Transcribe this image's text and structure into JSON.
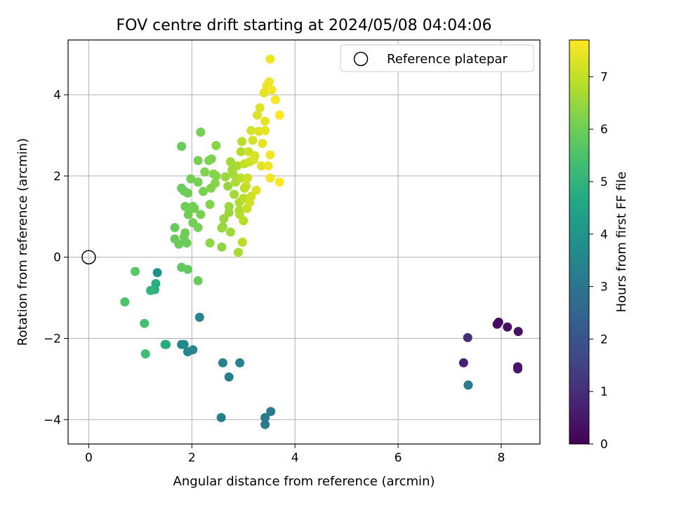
{
  "chart_data": {
    "type": "scatter",
    "title": "FOV centre drift starting at 2024/05/08 04:04:06",
    "xlabel": "Angular distance from reference (arcmin)",
    "ylabel": "Rotation from reference (arcmin)",
    "xlim": [
      -0.4,
      8.75
    ],
    "ylim": [
      -4.6,
      5.35
    ],
    "xticks": [
      0,
      2,
      4,
      6,
      8
    ],
    "xtick_labels": [
      "0",
      "2",
      "4",
      "6",
      "8"
    ],
    "yticks": [
      -4,
      -2,
      0,
      2,
      4
    ],
    "ytick_labels": [
      "−4",
      "−2",
      "0",
      "2",
      "4"
    ],
    "grid": true,
    "legend": {
      "placement": "top-right",
      "entries": [
        "Reference platepar"
      ]
    },
    "reference_point": {
      "x": 0,
      "y": 0
    },
    "colorbar": {
      "label": "Hours from first FF file",
      "cmap": "viridis",
      "range": [
        0,
        7.7
      ],
      "ticks": [
        0,
        1,
        2,
        3,
        4,
        5,
        6,
        7
      ],
      "tick_labels": [
        "0",
        "1",
        "2",
        "3",
        "4",
        "5",
        "6",
        "7"
      ]
    },
    "series": [
      {
        "points": [
          {
            "x": 7.95,
            "y": -1.6,
            "c": 0.2
          },
          {
            "x": 7.92,
            "y": -1.65,
            "c": 0.25
          },
          {
            "x": 8.12,
            "y": -1.72,
            "c": 0.3
          },
          {
            "x": 8.33,
            "y": -1.83,
            "c": 0.35
          },
          {
            "x": 8.32,
            "y": -2.7,
            "c": 0.4
          },
          {
            "x": 8.32,
            "y": -2.75,
            "c": 0.45
          },
          {
            "x": 7.27,
            "y": -2.6,
            "c": 0.7
          },
          {
            "x": 7.35,
            "y": -1.98,
            "c": 1.0
          },
          {
            "x": 7.36,
            "y": -3.15,
            "c": 3.0
          },
          {
            "x": 7.36,
            "y": -3.15,
            "c": 3.1
          },
          {
            "x": 3.53,
            "y": -3.8,
            "c": 3.2
          },
          {
            "x": 3.42,
            "y": -3.95,
            "c": 3.2
          },
          {
            "x": 3.42,
            "y": -4.12,
            "c": 3.1
          },
          {
            "x": 2.57,
            "y": -3.95,
            "c": 3.3
          },
          {
            "x": 2.72,
            "y": -2.95,
            "c": 3.3
          },
          {
            "x": 2.6,
            "y": -2.6,
            "c": 3.4
          },
          {
            "x": 2.93,
            "y": -2.6,
            "c": 3.4
          },
          {
            "x": 2.15,
            "y": -1.48,
            "c": 3.5
          },
          {
            "x": 2.02,
            "y": -2.28,
            "c": 3.5
          },
          {
            "x": 1.92,
            "y": -2.33,
            "c": 3.5
          },
          {
            "x": 1.85,
            "y": -2.15,
            "c": 3.6
          },
          {
            "x": 1.8,
            "y": -2.15,
            "c": 3.6
          },
          {
            "x": 1.33,
            "y": -0.38,
            "c": 3.9
          },
          {
            "x": 1.5,
            "y": -2.15,
            "c": 4.6
          },
          {
            "x": 1.48,
            "y": -2.15,
            "c": 4.7
          },
          {
            "x": 1.3,
            "y": -0.65,
            "c": 4.8
          },
          {
            "x": 1.28,
            "y": -0.8,
            "c": 4.9
          },
          {
            "x": 1.2,
            "y": -0.82,
            "c": 5.0
          },
          {
            "x": 1.1,
            "y": -2.38,
            "c": 5.3
          },
          {
            "x": 1.08,
            "y": -1.63,
            "c": 5.4
          },
          {
            "x": 0.7,
            "y": -1.1,
            "c": 5.5
          },
          {
            "x": 0.9,
            "y": -0.35,
            "c": 5.7
          },
          {
            "x": 1.8,
            "y": -0.25,
            "c": 5.8
          },
          {
            "x": 1.92,
            "y": -0.3,
            "c": 5.8
          },
          {
            "x": 2.12,
            "y": -0.58,
            "c": 5.9
          },
          {
            "x": 1.75,
            "y": 0.32,
            "c": 5.9
          },
          {
            "x": 1.67,
            "y": 0.45,
            "c": 5.9
          },
          {
            "x": 1.67,
            "y": 0.73,
            "c": 5.9
          },
          {
            "x": 1.9,
            "y": 0.35,
            "c": 5.95
          },
          {
            "x": 1.87,
            "y": 0.6,
            "c": 6.0
          },
          {
            "x": 1.85,
            "y": 0.5,
            "c": 6.0
          },
          {
            "x": 1.8,
            "y": 2.73,
            "c": 5.9
          },
          {
            "x": 1.8,
            "y": 1.7,
            "c": 5.9
          },
          {
            "x": 1.85,
            "y": 1.63,
            "c": 5.95
          },
          {
            "x": 1.92,
            "y": 1.58,
            "c": 6.0
          },
          {
            "x": 1.87,
            "y": 1.25,
            "c": 6.0
          },
          {
            "x": 1.95,
            "y": 1.22,
            "c": 6.0
          },
          {
            "x": 1.93,
            "y": 1.05,
            "c": 6.0
          },
          {
            "x": 2.02,
            "y": 1.25,
            "c": 6.05
          },
          {
            "x": 2.05,
            "y": 1.2,
            "c": 6.05
          },
          {
            "x": 1.98,
            "y": 1.93,
            "c": 6.05
          },
          {
            "x": 2.02,
            "y": 0.85,
            "c": 6.05
          },
          {
            "x": 2.12,
            "y": 0.73,
            "c": 6.1
          },
          {
            "x": 2.12,
            "y": 1.85,
            "c": 6.1
          },
          {
            "x": 2.12,
            "y": 2.38,
            "c": 6.1
          },
          {
            "x": 2.17,
            "y": 3.08,
            "c": 6.1
          },
          {
            "x": 2.17,
            "y": 1.05,
            "c": 6.15
          },
          {
            "x": 2.22,
            "y": 1.62,
            "c": 6.15
          },
          {
            "x": 2.25,
            "y": 2.1,
            "c": 6.2
          },
          {
            "x": 2.33,
            "y": 2.38,
            "c": 6.2
          },
          {
            "x": 2.38,
            "y": 2.42,
            "c": 6.2
          },
          {
            "x": 2.35,
            "y": 1.3,
            "c": 6.25
          },
          {
            "x": 2.37,
            "y": 1.7,
            "c": 6.25
          },
          {
            "x": 2.42,
            "y": 2.05,
            "c": 6.3
          },
          {
            "x": 2.45,
            "y": 1.82,
            "c": 6.3
          },
          {
            "x": 2.47,
            "y": 2.75,
            "c": 6.3
          },
          {
            "x": 2.47,
            "y": 2.0,
            "c": 6.3
          },
          {
            "x": 2.35,
            "y": 0.35,
            "c": 6.4
          },
          {
            "x": 2.58,
            "y": 0.25,
            "c": 6.4
          },
          {
            "x": 2.58,
            "y": 0.72,
            "c": 6.4
          },
          {
            "x": 2.6,
            "y": 0.75,
            "c": 6.5
          },
          {
            "x": 2.62,
            "y": 0.95,
            "c": 6.5
          },
          {
            "x": 2.65,
            "y": 1.98,
            "c": 6.5
          },
          {
            "x": 2.7,
            "y": 1.75,
            "c": 6.5
          },
          {
            "x": 2.72,
            "y": 1.25,
            "c": 6.55
          },
          {
            "x": 2.72,
            "y": 1.1,
            "c": 6.55
          },
          {
            "x": 2.75,
            "y": 0.62,
            "c": 6.6
          },
          {
            "x": 2.75,
            "y": 2.35,
            "c": 6.6
          },
          {
            "x": 2.78,
            "y": 2.15,
            "c": 6.6
          },
          {
            "x": 2.8,
            "y": 2.05,
            "c": 6.65
          },
          {
            "x": 2.82,
            "y": 1.55,
            "c": 6.65
          },
          {
            "x": 2.85,
            "y": 1.85,
            "c": 6.7
          },
          {
            "x": 2.88,
            "y": 2.25,
            "c": 6.7
          },
          {
            "x": 2.9,
            "y": 0.12,
            "c": 6.7
          },
          {
            "x": 2.92,
            "y": 1.35,
            "c": 6.75
          },
          {
            "x": 2.92,
            "y": 1.15,
            "c": 6.75
          },
          {
            "x": 2.93,
            "y": 1.05,
            "c": 6.8
          },
          {
            "x": 2.95,
            "y": 2.6,
            "c": 6.8
          },
          {
            "x": 2.95,
            "y": 1.95,
            "c": 6.85
          },
          {
            "x": 2.97,
            "y": 2.85,
            "c": 6.85
          },
          {
            "x": 2.98,
            "y": 0.37,
            "c": 6.9
          },
          {
            "x": 3.0,
            "y": 0.9,
            "c": 6.9
          },
          {
            "x": 3.0,
            "y": 1.45,
            "c": 6.9
          },
          {
            "x": 3.02,
            "y": 1.7,
            "c": 6.95
          },
          {
            "x": 3.02,
            "y": 2.3,
            "c": 7.0
          },
          {
            "x": 3.05,
            "y": 1.75,
            "c": 7.0
          },
          {
            "x": 3.07,
            "y": 1.2,
            "c": 7.05
          },
          {
            "x": 3.08,
            "y": 1.95,
            "c": 7.1
          },
          {
            "x": 3.1,
            "y": 2.6,
            "c": 7.1
          },
          {
            "x": 3.12,
            "y": 2.35,
            "c": 7.1
          },
          {
            "x": 3.12,
            "y": 1.35,
            "c": 7.15
          },
          {
            "x": 3.15,
            "y": 1.5,
            "c": 7.15
          },
          {
            "x": 3.15,
            "y": 3.12,
            "c": 7.2
          },
          {
            "x": 3.18,
            "y": 2.88,
            "c": 7.2
          },
          {
            "x": 3.2,
            "y": 2.4,
            "c": 7.25
          },
          {
            "x": 3.22,
            "y": 2.5,
            "c": 7.25
          },
          {
            "x": 3.25,
            "y": 1.65,
            "c": 7.3
          },
          {
            "x": 3.27,
            "y": 3.5,
            "c": 7.3
          },
          {
            "x": 3.3,
            "y": 3.1,
            "c": 7.3
          },
          {
            "x": 3.32,
            "y": 3.68,
            "c": 7.35
          },
          {
            "x": 3.35,
            "y": 2.25,
            "c": 7.35
          },
          {
            "x": 3.37,
            "y": 2.8,
            "c": 7.4
          },
          {
            "x": 3.4,
            "y": 4.05,
            "c": 7.4
          },
          {
            "x": 3.42,
            "y": 3.35,
            "c": 7.45
          },
          {
            "x": 3.42,
            "y": 3.12,
            "c": 7.45
          },
          {
            "x": 3.45,
            "y": 4.22,
            "c": 7.5
          },
          {
            "x": 3.48,
            "y": 2.25,
            "c": 7.5
          },
          {
            "x": 3.5,
            "y": 4.32,
            "c": 7.55
          },
          {
            "x": 3.52,
            "y": 4.88,
            "c": 7.55
          },
          {
            "x": 3.52,
            "y": 1.95,
            "c": 7.6
          },
          {
            "x": 3.52,
            "y": 2.52,
            "c": 7.6
          },
          {
            "x": 3.55,
            "y": 4.12,
            "c": 7.6
          },
          {
            "x": 3.62,
            "y": 3.88,
            "c": 7.65
          },
          {
            "x": 3.7,
            "y": 3.5,
            "c": 7.7
          },
          {
            "x": 3.7,
            "y": 1.85,
            "c": 7.7
          }
        ]
      }
    ]
  }
}
